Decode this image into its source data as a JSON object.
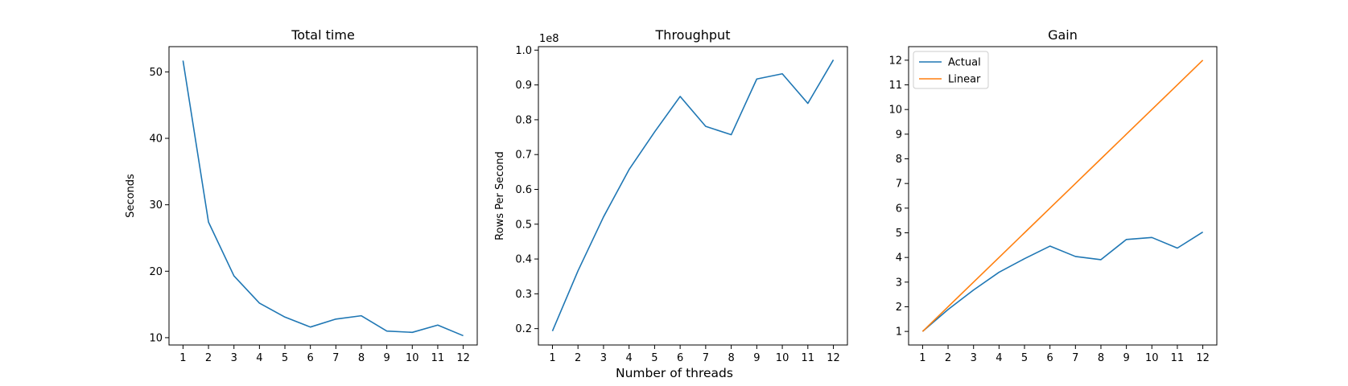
{
  "figure": {
    "xlabel": "Number of threads"
  },
  "chart_data": [
    {
      "type": "line",
      "title": "Total time",
      "xlabel": "",
      "ylabel": "Seconds",
      "x": [
        1,
        2,
        3,
        4,
        5,
        6,
        7,
        8,
        9,
        10,
        11,
        12
      ],
      "xlim": [
        0.45,
        12.55
      ],
      "ylim": [
        8.9,
        53.8
      ],
      "yticks": [
        10,
        20,
        30,
        40,
        50
      ],
      "ytick_labels": [
        "10",
        "20",
        "30",
        "40",
        "50"
      ],
      "offset_label": "",
      "series": [
        {
          "values": [
            51.7,
            27.4,
            19.3,
            15.2,
            13.1,
            11.6,
            12.8,
            13.3,
            11.0,
            10.8,
            11.9,
            10.3
          ],
          "color": "#1f77b4"
        }
      ],
      "legend": null
    },
    {
      "type": "line",
      "title": "Throughput",
      "xlabel": "",
      "ylabel": "Rows Per Second",
      "x": [
        1,
        2,
        3,
        4,
        5,
        6,
        7,
        8,
        9,
        10,
        11,
        12
      ],
      "xlim": [
        0.45,
        12.55
      ],
      "ylim": [
        0.153,
        1.01
      ],
      "yticks": [
        0.2,
        0.3,
        0.4,
        0.5,
        0.6,
        0.7,
        0.8,
        0.9,
        1.0
      ],
      "ytick_labels": [
        "0.2",
        "0.3",
        "0.4",
        "0.5",
        "0.6",
        "0.7",
        "0.8",
        "0.9",
        "1.0"
      ],
      "offset_label": "1e8",
      "series": [
        {
          "values": [
            0.193,
            0.366,
            0.521,
            0.657,
            0.765,
            0.867,
            0.781,
            0.757,
            0.917,
            0.932,
            0.847,
            0.972
          ],
          "color": "#1f77b4"
        }
      ],
      "legend": null
    },
    {
      "type": "line",
      "title": "Gain",
      "xlabel": "",
      "ylabel": "",
      "x": [
        1,
        2,
        3,
        4,
        5,
        6,
        7,
        8,
        9,
        10,
        11,
        12
      ],
      "xlim": [
        0.45,
        12.55
      ],
      "ylim": [
        0.45,
        12.55
      ],
      "yticks": [
        1,
        2,
        3,
        4,
        5,
        6,
        7,
        8,
        9,
        10,
        11,
        12
      ],
      "ytick_labels": [
        "1",
        "2",
        "3",
        "4",
        "5",
        "6",
        "7",
        "8",
        "9",
        "10",
        "11",
        "12"
      ],
      "offset_label": "",
      "series": [
        {
          "name": "Actual",
          "values": [
            1.0,
            1.89,
            2.68,
            3.4,
            3.95,
            4.46,
            4.04,
            3.91,
            4.73,
            4.81,
            4.38,
            5.03
          ],
          "color": "#1f77b4"
        },
        {
          "name": "Linear",
          "values": [
            1,
            2,
            3,
            4,
            5,
            6,
            7,
            8,
            9,
            10,
            11,
            12
          ],
          "color": "#ff7f0e"
        }
      ],
      "legend": "upper left"
    }
  ]
}
